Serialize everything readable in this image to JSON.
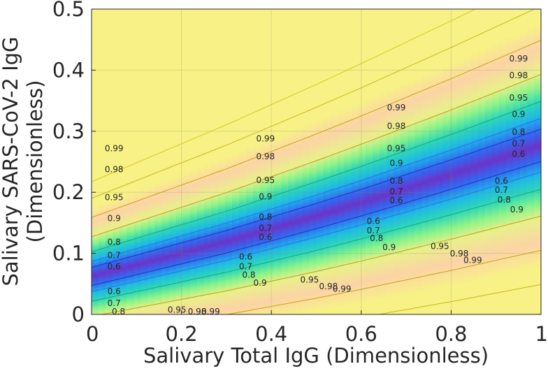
{
  "chart_data": {
    "type": "heatmap",
    "title": "",
    "xlabel": "Salivary Total IgG (Dimensionless)",
    "ylabel_lines": [
      "Salivary SARS-CoV-2 IgG",
      "(Dimensionless)"
    ],
    "xlim": [
      0,
      1
    ],
    "ylim": [
      0,
      0.5
    ],
    "x_ticks": [
      0,
      0.2,
      0.4,
      0.6,
      0.8,
      1
    ],
    "x_tick_labels": [
      "0",
      "0.2",
      "0.4",
      "0.6",
      "0.8",
      "1"
    ],
    "y_ticks": [
      0,
      0.1,
      0.2,
      0.3,
      0.4,
      0.5
    ],
    "y_tick_labels": [
      "0",
      "0.1",
      "0.2",
      "0.3",
      "0.4",
      "0.5"
    ],
    "grid": true,
    "colorscale": [
      "#6b34c8",
      "#2f6bf2",
      "#1fb8e6",
      "#2fd8b4",
      "#8cf38a",
      "#e9f08a",
      "#fcd3a6",
      "#f7f186"
    ],
    "trough_curve": {
      "x": [
        0,
        0.1,
        0.2,
        0.3,
        0.4,
        0.5,
        0.6,
        0.7,
        0.8,
        0.9,
        1
      ],
      "y": [
        0.062,
        0.081,
        0.1,
        0.119,
        0.14,
        0.161,
        0.183,
        0.206,
        0.229,
        0.253,
        0.277
      ]
    },
    "contour_levels": [
      0.6,
      0.7,
      0.8,
      0.9,
      0.95,
      0.98,
      0.99
    ],
    "contour_labels": [
      {
        "text": "0.99",
        "x": 0.05,
        "y": 0.271
      },
      {
        "text": "0.98",
        "x": 0.05,
        "y": 0.237
      },
      {
        "text": "0.95",
        "x": 0.05,
        "y": 0.191
      },
      {
        "text": "0.9",
        "x": 0.05,
        "y": 0.157
      },
      {
        "text": "0.8",
        "x": 0.05,
        "y": 0.118
      },
      {
        "text": "0.7",
        "x": 0.05,
        "y": 0.096
      },
      {
        "text": "0.6",
        "x": 0.05,
        "y": 0.078
      },
      {
        "text": "0.6",
        "x": 0.05,
        "y": 0.037
      },
      {
        "text": "0.7",
        "x": 0.05,
        "y": 0.018
      },
      {
        "text": "0.8",
        "x": 0.06,
        "y": 0.004
      },
      {
        "text": "0.95",
        "x": 0.19,
        "y": 0.007
      },
      {
        "text": "0.98",
        "x": 0.235,
        "y": 0.004
      },
      {
        "text": "0.99",
        "x": 0.265,
        "y": 0.004
      },
      {
        "text": "0.99",
        "x": 0.387,
        "y": 0.287
      },
      {
        "text": "0.98",
        "x": 0.387,
        "y": 0.258
      },
      {
        "text": "0.95",
        "x": 0.387,
        "y": 0.219
      },
      {
        "text": "0.9",
        "x": 0.387,
        "y": 0.192
      },
      {
        "text": "0.8",
        "x": 0.387,
        "y": 0.159
      },
      {
        "text": "0.7",
        "x": 0.387,
        "y": 0.141
      },
      {
        "text": "0.6",
        "x": 0.387,
        "y": 0.126
      },
      {
        "text": "0.6",
        "x": 0.343,
        "y": 0.094
      },
      {
        "text": "0.7",
        "x": 0.343,
        "y": 0.078
      },
      {
        "text": "0.8",
        "x": 0.35,
        "y": 0.064
      },
      {
        "text": "0.9",
        "x": 0.375,
        "y": 0.051
      },
      {
        "text": "0.95",
        "x": 0.485,
        "y": 0.056
      },
      {
        "text": "0.98",
        "x": 0.527,
        "y": 0.045
      },
      {
        "text": "0.99",
        "x": 0.557,
        "y": 0.041
      },
      {
        "text": "0.99",
        "x": 0.678,
        "y": 0.338
      },
      {
        "text": "0.98",
        "x": 0.678,
        "y": 0.308
      },
      {
        "text": "0.95",
        "x": 0.678,
        "y": 0.271
      },
      {
        "text": "0.9",
        "x": 0.678,
        "y": 0.247
      },
      {
        "text": "0.8",
        "x": 0.678,
        "y": 0.218
      },
      {
        "text": "0.7",
        "x": 0.678,
        "y": 0.201
      },
      {
        "text": "0.6",
        "x": 0.678,
        "y": 0.186
      },
      {
        "text": "0.6",
        "x": 0.627,
        "y": 0.152
      },
      {
        "text": "0.7",
        "x": 0.627,
        "y": 0.137
      },
      {
        "text": "0.8",
        "x": 0.634,
        "y": 0.124
      },
      {
        "text": "0.9",
        "x": 0.662,
        "y": 0.109
      },
      {
        "text": "0.95",
        "x": 0.775,
        "y": 0.111
      },
      {
        "text": "0.98",
        "x": 0.818,
        "y": 0.099
      },
      {
        "text": "0.99",
        "x": 0.848,
        "y": 0.088
      },
      {
        "text": "0.99",
        "x": 0.95,
        "y": 0.418
      },
      {
        "text": "0.98",
        "x": 0.95,
        "y": 0.391
      },
      {
        "text": "0.95",
        "x": 0.95,
        "y": 0.354
      },
      {
        "text": "0.9",
        "x": 0.95,
        "y": 0.327
      },
      {
        "text": "0.8",
        "x": 0.95,
        "y": 0.298
      },
      {
        "text": "0.7",
        "x": 0.95,
        "y": 0.279
      },
      {
        "text": "0.6",
        "x": 0.95,
        "y": 0.262
      },
      {
        "text": "0.6",
        "x": 0.912,
        "y": 0.218
      },
      {
        "text": "0.7",
        "x": 0.912,
        "y": 0.203
      },
      {
        "text": "0.8",
        "x": 0.918,
        "y": 0.187
      },
      {
        "text": "0.9",
        "x": 0.946,
        "y": 0.171
      }
    ]
  }
}
